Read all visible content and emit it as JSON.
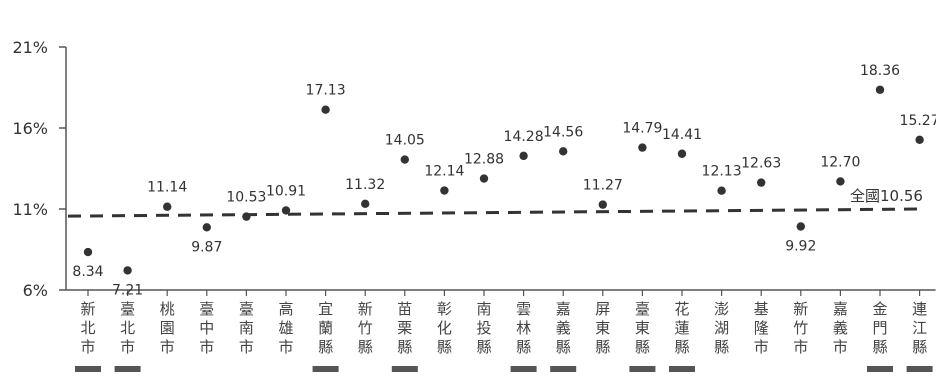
{
  "chart_data": {
    "type": "scatter",
    "title": "",
    "xlabel": "",
    "ylabel": "",
    "ylim": [
      6,
      21
    ],
    "y_ticks": [
      6,
      11,
      16,
      21
    ],
    "y_tick_labels": [
      "6%",
      "11%",
      "16%",
      "21%"
    ],
    "grid": false,
    "colors": {
      "point": "#333333",
      "axis": "#555555",
      "reference": "#333333",
      "underline": "#555555"
    },
    "categories": [
      "新北市",
      "臺北市",
      "桃園市",
      "臺中市",
      "臺南市",
      "高雄市",
      "宜蘭縣",
      "新竹縣",
      "苗栗縣",
      "彰化縣",
      "南投縣",
      "雲林縣",
      "嘉義縣",
      "屏東縣",
      "臺東縣",
      "花蓮縣",
      "澎湖縣",
      "基隆市",
      "新竹市",
      "嘉義市",
      "金門縣",
      "連江縣"
    ],
    "values": [
      8.34,
      7.21,
      11.14,
      9.87,
      10.53,
      10.91,
      17.13,
      11.32,
      14.05,
      12.14,
      12.88,
      14.28,
      14.56,
      11.27,
      14.79,
      14.41,
      12.13,
      12.63,
      9.92,
      12.7,
      18.36,
      15.27
    ],
    "value_labels": [
      "8.34",
      "7.21",
      "11.14",
      "9.87",
      "10.53",
      "10.91",
      "17.13",
      "11.32",
      "14.05",
      "12.14",
      "12.88",
      "14.28",
      "14.56",
      "11.27",
      "14.79",
      "14.41",
      "12.13",
      "12.63",
      "9.92",
      "12.70",
      "18.36",
      "15.27"
    ],
    "label_position": [
      "below",
      "below",
      "above",
      "below",
      "above",
      "above",
      "above",
      "above",
      "above",
      "above",
      "above",
      "above",
      "above",
      "above",
      "above",
      "above",
      "above",
      "above",
      "below",
      "above",
      "above",
      "above"
    ],
    "underlined": [
      true,
      true,
      false,
      false,
      false,
      false,
      true,
      false,
      true,
      false,
      false,
      true,
      true,
      false,
      true,
      true,
      false,
      false,
      false,
      false,
      true,
      true
    ],
    "reference_line": {
      "label": "全國10.56",
      "value_start": 10.56,
      "value_end": 11.0,
      "style": "dashed"
    }
  }
}
